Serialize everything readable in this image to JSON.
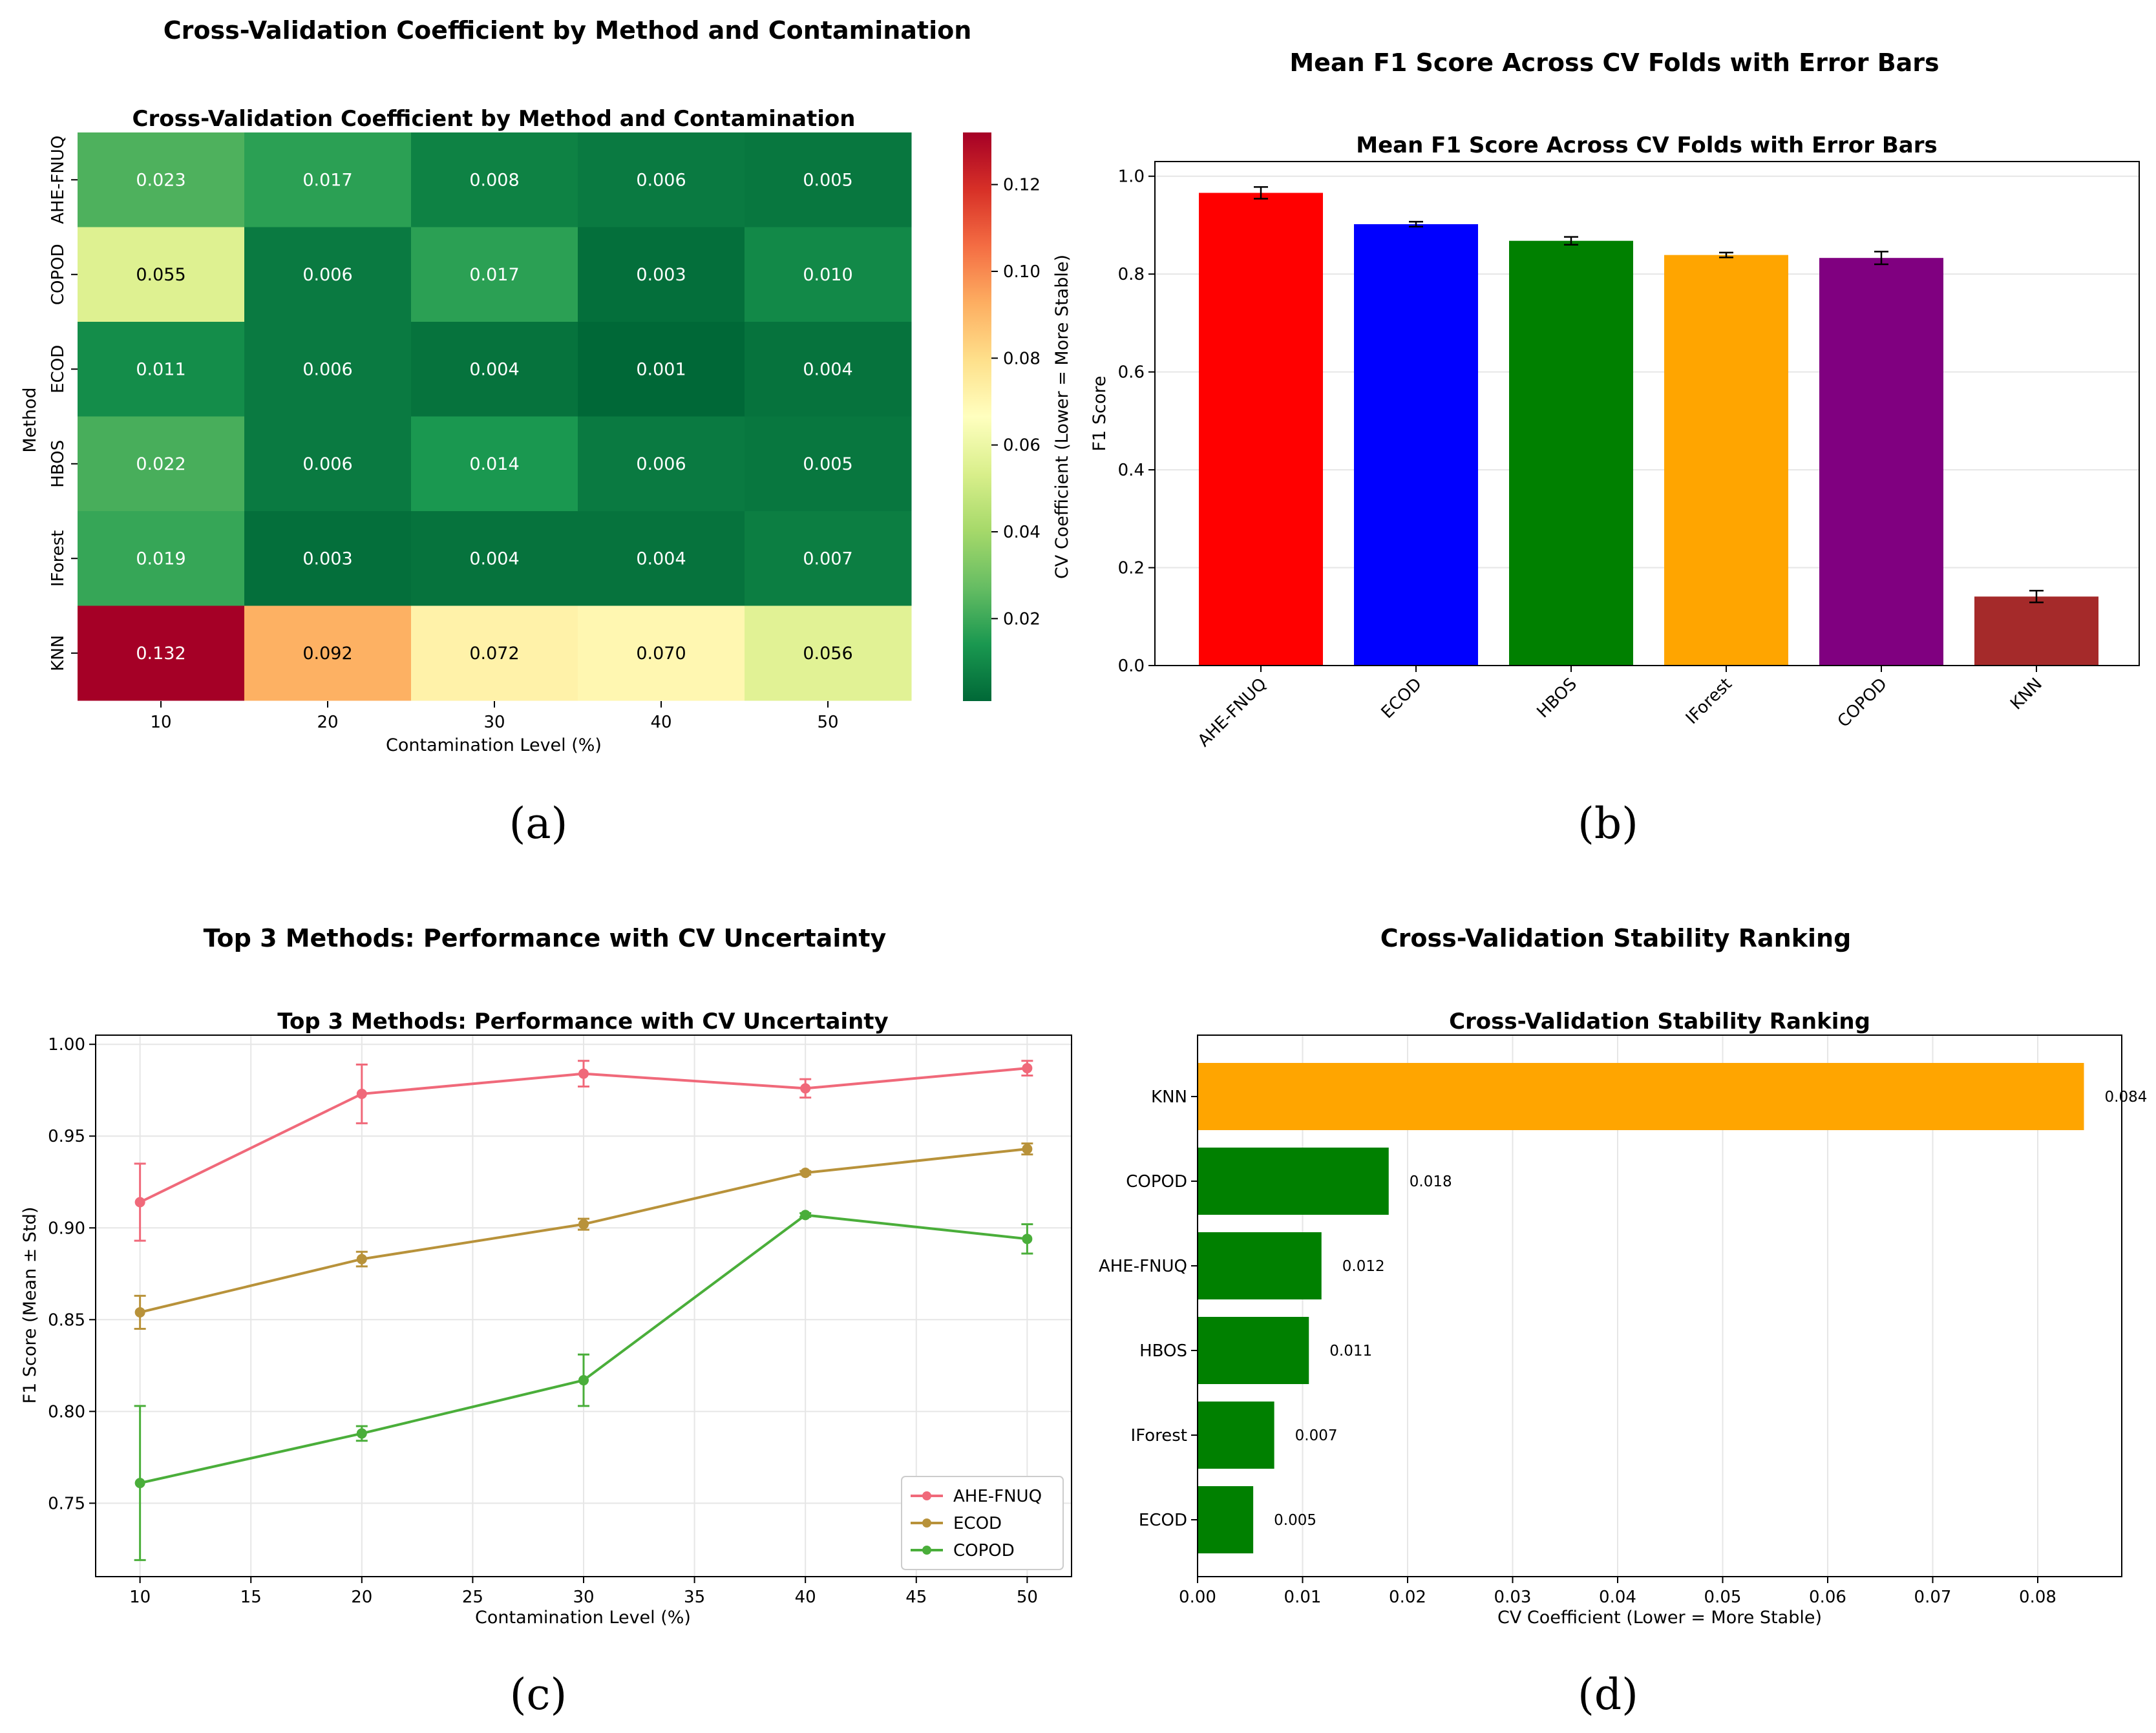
{
  "chart_data": [
    {
      "type": "heatmap",
      "panel_title": "Cross-Validation Coefficient by Method and Contamination",
      "title": "Cross-Validation Coefficient by Method and Contamination",
      "xlabel": "Contamination Level (%)",
      "ylabel": "Method",
      "x": [
        "10",
        "20",
        "30",
        "40",
        "50"
      ],
      "y": [
        "AHE-FNUQ",
        "COPOD",
        "ECOD",
        "HBOS",
        "IForest",
        "KNN"
      ],
      "values": [
        [
          0.023,
          0.017,
          0.008,
          0.006,
          0.005
        ],
        [
          0.055,
          0.006,
          0.017,
          0.003,
          0.01
        ],
        [
          0.011,
          0.006,
          0.004,
          0.001,
          0.004
        ],
        [
          0.022,
          0.006,
          0.014,
          0.006,
          0.005
        ],
        [
          0.019,
          0.003,
          0.004,
          0.004,
          0.007
        ],
        [
          0.132,
          0.092,
          0.072,
          0.07,
          0.056
        ]
      ],
      "cell_labels": [
        [
          "0.023",
          "0.017",
          "0.008",
          "0.006",
          "0.005"
        ],
        [
          "0.055",
          "0.006",
          "0.017",
          "0.003",
          "0.010"
        ],
        [
          "0.011",
          "0.006",
          "0.004",
          "0.001",
          "0.004"
        ],
        [
          "0.022",
          "0.006",
          "0.014",
          "0.006",
          "0.005"
        ],
        [
          "0.019",
          "0.003",
          "0.004",
          "0.004",
          "0.007"
        ],
        [
          "0.132",
          "0.092",
          "0.072",
          "0.070",
          "0.056"
        ]
      ],
      "colorbar": {
        "label": "CV Coefficient (Lower = More Stable)",
        "colormap": "RdYlGn_r",
        "range": [
          0.001,
          0.132
        ],
        "ticks": [
          0.02,
          0.04,
          0.06,
          0.08,
          0.1,
          0.12
        ],
        "tick_labels": [
          "0.02",
          "0.04",
          "0.06",
          "0.08",
          "0.10",
          "0.12"
        ]
      },
      "caption": "(a)"
    },
    {
      "type": "bar",
      "panel_title": "Mean F1 Score Across CV Folds with Error Bars",
      "title": "Mean F1 Score Across CV Folds with Error Bars",
      "xlabel": "",
      "ylabel": "F1 Score",
      "categories": [
        "AHE-FNUQ",
        "ECOD",
        "HBOS",
        "IForest",
        "COPOD",
        "KNN"
      ],
      "values": [
        0.966,
        0.902,
        0.868,
        0.839,
        0.833,
        0.141
      ],
      "errors": [
        0.012,
        0.005,
        0.008,
        0.005,
        0.013,
        0.012
      ],
      "colors": [
        "#ff0000",
        "#0000ff",
        "#008000",
        "#ffa500",
        "#800080",
        "#a52a2a"
      ],
      "ylim": [
        0,
        1.03
      ],
      "yticks": [
        0.0,
        0.2,
        0.4,
        0.6,
        0.8,
        1.0
      ],
      "ytick_labels": [
        "0.0",
        "0.2",
        "0.4",
        "0.6",
        "0.8",
        "1.0"
      ],
      "grid": true,
      "caption": "(b)"
    },
    {
      "type": "line",
      "panel_title": "Top 3 Methods: Performance with CV Uncertainty",
      "title": "Top 3 Methods: Performance with CV Uncertainty",
      "xlabel": "Contamination Level (%)",
      "ylabel": "F1 Score (Mean ± Std)",
      "x": [
        10,
        20,
        30,
        40,
        50
      ],
      "xlim": [
        8,
        52
      ],
      "ylim": [
        0.71,
        1.005
      ],
      "xticks": [
        10,
        15,
        20,
        25,
        30,
        35,
        40,
        45,
        50
      ],
      "xtick_labels": [
        "10",
        "15",
        "20",
        "25",
        "30",
        "35",
        "40",
        "45",
        "50"
      ],
      "yticks": [
        0.75,
        0.8,
        0.85,
        0.9,
        0.95,
        1.0
      ],
      "ytick_labels": [
        "0.75",
        "0.80",
        "0.85",
        "0.90",
        "0.95",
        "1.00"
      ],
      "series": [
        {
          "name": "AHE-FNUQ",
          "color": "#f0697a",
          "values": [
            0.914,
            0.973,
            0.984,
            0.976,
            0.987
          ],
          "errors": [
            0.021,
            0.016,
            0.007,
            0.005,
            0.004
          ]
        },
        {
          "name": "ECOD",
          "color": "#b8923a",
          "values": [
            0.854,
            0.883,
            0.902,
            0.93,
            0.943
          ],
          "errors": [
            0.009,
            0.004,
            0.003,
            0.001,
            0.003
          ]
        },
        {
          "name": "COPOD",
          "color": "#4aae3a",
          "values": [
            0.761,
            0.788,
            0.817,
            0.907,
            0.894
          ],
          "errors": [
            0.042,
            0.004,
            0.014,
            0.001,
            0.008
          ]
        }
      ],
      "legend": "bottom-right",
      "grid": true,
      "caption": "(c)"
    },
    {
      "type": "bar",
      "orientation": "horizontal",
      "panel_title": "Cross-Validation Stability Ranking",
      "title": "Cross-Validation Stability Ranking",
      "xlabel": "CV Coefficient (Lower = More Stable)",
      "ylabel": "",
      "categories": [
        "KNN",
        "COPOD",
        "AHE-FNUQ",
        "HBOS",
        "IForest",
        "ECOD"
      ],
      "values": [
        0.0844,
        0.0182,
        0.0118,
        0.0106,
        0.0073,
        0.0053
      ],
      "value_labels": [
        "0.084",
        "0.018",
        "0.012",
        "0.011",
        "0.007",
        "0.005"
      ],
      "colors": [
        "#ffa500",
        "#008000",
        "#008000",
        "#008000",
        "#008000",
        "#008000"
      ],
      "xlim": [
        0,
        0.088
      ],
      "xticks": [
        0,
        0.01,
        0.02,
        0.03,
        0.04,
        0.05,
        0.06,
        0.07,
        0.08
      ],
      "xtick_labels": [
        "0.00",
        "0.01",
        "0.02",
        "0.03",
        "0.04",
        "0.05",
        "0.06",
        "0.07",
        "0.08"
      ],
      "grid": true,
      "caption": "(d)"
    }
  ]
}
